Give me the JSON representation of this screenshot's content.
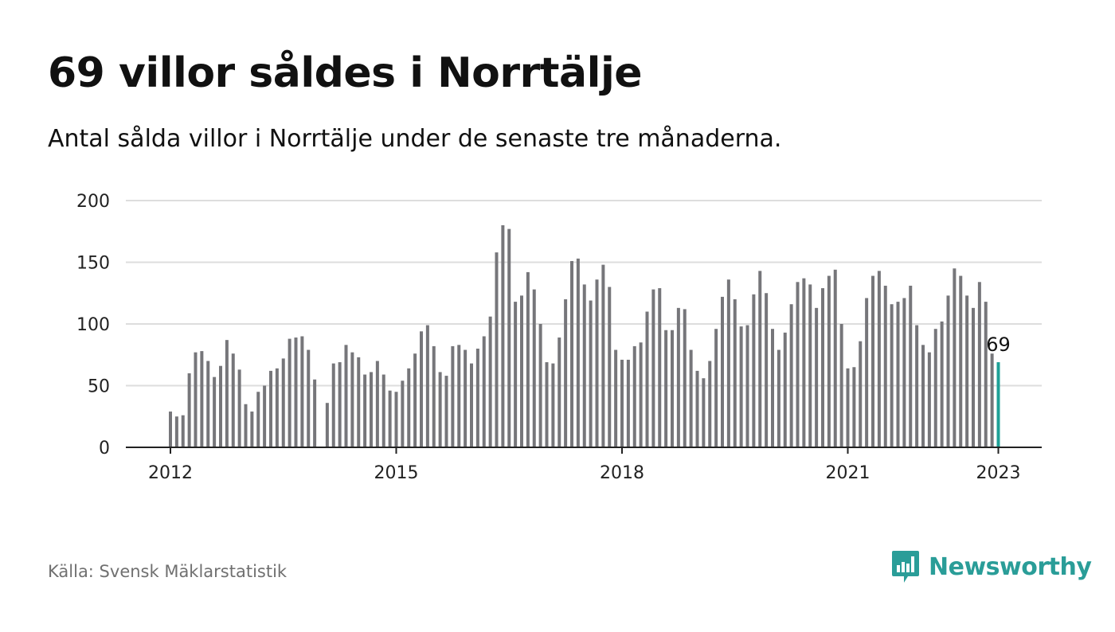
{
  "header": {
    "title": "69 villor såldes i Norrtälje",
    "subtitle": "Antal sålda villor i Norrtälje under de senaste tre månaderna."
  },
  "footer": {
    "source": "Källa: Svensk Mäklarstatistik",
    "brand": "Newsworthy",
    "brand_icon": "newsworthy-logo-icon"
  },
  "colors": {
    "bar": "#76767a",
    "highlight": "#1ea097",
    "grid": "#dddddd",
    "axis": "#222222",
    "brand": "#2a9d98"
  },
  "chart_data": {
    "type": "bar",
    "x_start": "2012-01",
    "x_tick_labels": [
      "2012",
      "2015",
      "2018",
      "2021",
      "2023"
    ],
    "ylim": [
      0,
      200
    ],
    "y_ticks": [
      0,
      50,
      100,
      150,
      200
    ],
    "grid": true,
    "values": [
      29,
      25,
      26,
      60,
      77,
      78,
      70,
      57,
      66,
      87,
      76,
      63,
      35,
      29,
      45,
      50,
      62,
      64,
      72,
      88,
      89,
      90,
      79,
      55,
      null,
      36,
      68,
      69,
      83,
      77,
      73,
      59,
      61,
      70,
      59,
      46,
      45,
      54,
      64,
      76,
      94,
      99,
      82,
      61,
      58,
      82,
      83,
      79,
      68,
      80,
      90,
      106,
      158,
      180,
      177,
      118,
      123,
      142,
      128,
      100,
      69,
      68,
      89,
      120,
      151,
      153,
      132,
      119,
      136,
      148,
      130,
      79,
      71,
      71,
      82,
      85,
      110,
      128,
      129,
      95,
      95,
      113,
      112,
      79,
      62,
      56,
      70,
      96,
      122,
      136,
      120,
      98,
      99,
      124,
      143,
      125,
      96,
      79,
      93,
      116,
      134,
      137,
      132,
      113,
      129,
      139,
      144,
      100,
      64,
      65,
      86,
      121,
      139,
      143,
      131,
      116,
      118,
      121,
      131,
      99,
      83,
      77,
      96,
      102,
      123,
      145,
      139,
      123,
      113,
      134,
      118,
      76,
      69
    ],
    "highlight_label": "69"
  }
}
